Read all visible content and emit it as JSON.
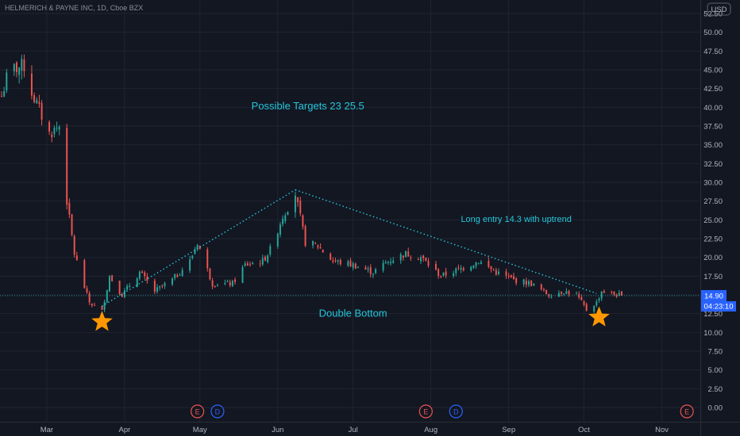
{
  "chart_data": {
    "type": "candlestick",
    "title": "HELMERICH & PAYNE INC, 1D, Cboe BZX",
    "currency_label": "USD",
    "ylim": [
      -1,
      54
    ],
    "y_ticks": [
      0,
      2.5,
      5,
      7.5,
      10,
      12.5,
      15,
      17.5,
      20,
      22.5,
      25,
      27.5,
      30,
      32.5,
      35,
      37.5,
      40,
      42.5,
      45,
      47.5,
      50,
      52.5
    ],
    "y_tick_labels": [
      "0.00",
      "2.50",
      "5.00",
      "7.50",
      "10.00",
      "12.50",
      "15.00",
      "17.50",
      "20.00",
      "22.50",
      "25.00",
      "27.50",
      "30.00",
      "32.50",
      "35.00",
      "37.50",
      "40.00",
      "42.50",
      "45.00",
      "47.50",
      "50.00",
      "52.50"
    ],
    "x_range": [
      "2020-02-12",
      "2020-11-10"
    ],
    "x_ticks": [
      {
        "date": "2020-03-01",
        "label": "Mar"
      },
      {
        "date": "2020-04-01",
        "label": "Apr"
      },
      {
        "date": "2020-05-01",
        "label": "May"
      },
      {
        "date": "2020-06-01",
        "label": "Jun"
      },
      {
        "date": "2020-07-01",
        "label": "Jul"
      },
      {
        "date": "2020-08-01",
        "label": "Aug"
      },
      {
        "date": "2020-09-01",
        "label": "Sep"
      },
      {
        "date": "2020-10-01",
        "label": "Oct"
      },
      {
        "date": "2020-11-01",
        "label": "Nov"
      }
    ],
    "colors": {
      "up": "#26a69a",
      "down": "#ef5350",
      "background": "#131722",
      "grid": "#1f2431",
      "annotation": "#26c6da",
      "price_tag": "#2962ff",
      "star": "#ff9800"
    },
    "last_price": 14.9,
    "last_price_label": "14.90",
    "countdown_label": "04:23:10",
    "anchors": [
      [
        "2020-02-12",
        41.5
      ],
      [
        "2020-02-15",
        45.0
      ],
      [
        "2020-02-21",
        45.5
      ],
      [
        "2020-02-24",
        42.0
      ],
      [
        "2020-03-02",
        36.5
      ],
      [
        "2020-03-06",
        37.5
      ],
      [
        "2020-03-09",
        27.5
      ],
      [
        "2020-03-12",
        20.5
      ],
      [
        "2020-03-16",
        16.0
      ],
      [
        "2020-03-18",
        14.0
      ],
      [
        "2020-03-20",
        13.5
      ],
      [
        "2020-03-23",
        12.8
      ],
      [
        "2020-03-26",
        17.5
      ],
      [
        "2020-03-31",
        15.0
      ],
      [
        "2020-04-07",
        18.0
      ],
      [
        "2020-04-13",
        15.5
      ],
      [
        "2020-04-20",
        17.0
      ],
      [
        "2020-04-27",
        19.5
      ],
      [
        "2020-04-30",
        22.0
      ],
      [
        "2020-05-06",
        16.5
      ],
      [
        "2020-05-14",
        16.5
      ],
      [
        "2020-05-19",
        19.0
      ],
      [
        "2020-05-26",
        19.5
      ],
      [
        "2020-05-29",
        21.0
      ],
      [
        "2020-06-03",
        25.5
      ],
      [
        "2020-06-08",
        28.5
      ],
      [
        "2020-06-12",
        22.0
      ],
      [
        "2020-06-17",
        21.5
      ],
      [
        "2020-06-23",
        19.5
      ],
      [
        "2020-07-01",
        19.0
      ],
      [
        "2020-07-09",
        18.0
      ],
      [
        "2020-07-15",
        19.5
      ],
      [
        "2020-07-22",
        20.5
      ],
      [
        "2020-07-28",
        20.0
      ],
      [
        "2020-08-05",
        17.5
      ],
      [
        "2020-08-13",
        18.5
      ],
      [
        "2020-08-20",
        19.5
      ],
      [
        "2020-08-27",
        18.0
      ],
      [
        "2020-09-03",
        17.0
      ],
      [
        "2020-09-10",
        16.5
      ],
      [
        "2020-09-17",
        15.0
      ],
      [
        "2020-09-23",
        15.5
      ],
      [
        "2020-09-28",
        15.0
      ],
      [
        "2020-10-02",
        13.0
      ],
      [
        "2020-10-06",
        14.0
      ],
      [
        "2020-10-08",
        15.5
      ],
      [
        "2020-10-14",
        15.0
      ],
      [
        "2020-10-17",
        14.9
      ]
    ],
    "annotations": [
      {
        "text": "Possible Targets  23   25.5",
        "date": "2020-06-13",
        "price": 40.2,
        "size": 13
      },
      {
        "text": "Long entry 14.3 with uptrend",
        "date": "2020-09-04",
        "price": 25.1,
        "size": 11
      },
      {
        "text": "Double Bottom",
        "date": "2020-07-01",
        "price": 12.6,
        "size": 13
      }
    ],
    "trendlines": [
      {
        "from": [
          "2020-03-23",
          13.5
        ],
        "to": [
          "2020-06-08",
          29.0
        ]
      },
      {
        "from": [
          "2020-06-08",
          29.0
        ],
        "to": [
          "2020-10-06",
          15.2
        ]
      }
    ],
    "stars": [
      {
        "date": "2020-03-23",
        "price": 11.4
      },
      {
        "date": "2020-10-07",
        "price": 12.0
      }
    ],
    "events": [
      {
        "type": "E",
        "date": "2020-04-30"
      },
      {
        "type": "D",
        "date": "2020-05-08"
      },
      {
        "type": "E",
        "date": "2020-07-30"
      },
      {
        "type": "D",
        "date": "2020-08-11"
      },
      {
        "type": "E",
        "date": "2020-11-11"
      }
    ]
  }
}
